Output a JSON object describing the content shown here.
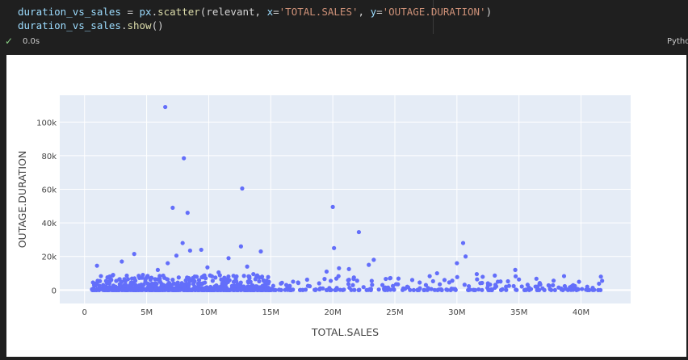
{
  "cell": {
    "line1_var": "duration_vs_sales",
    "line1_eq": " = ",
    "line1_mod": "px",
    "line1_dot": ".",
    "line1_fn": "scatter",
    "line1_open": "(relevant, ",
    "line1_xkw": "x",
    "line1_xval": "'TOTAL.SALES'",
    "line1_sep": ", ",
    "line1_ykw": "y",
    "line1_yval": "'OUTAGE.DURATION'",
    "line1_close": ")",
    "line2_var": "duration_vs_sales",
    "line2_dot": ".",
    "line2_fn": "show",
    "line2_paren": "()",
    "eq_sign": "="
  },
  "status": {
    "check_icon": "check-icon",
    "exec_time": "0.0s",
    "kernel": "Pytho"
  },
  "colors": {
    "plot_bg": "#e5ecf6",
    "marker": "#636efa",
    "grid": "#ffffff",
    "axis_text": "#444444"
  },
  "chart_data": {
    "type": "scatter",
    "xlabel": "TOTAL.SALES",
    "ylabel": "OUTAGE.DURATION",
    "xlim": [
      -2000000,
      44000000
    ],
    "ylim": [
      -8000,
      116000
    ],
    "x_ticks": [
      0,
      5000000,
      10000000,
      15000000,
      20000000,
      25000000,
      30000000,
      35000000,
      40000000
    ],
    "x_tick_labels": [
      "0",
      "5M",
      "10M",
      "15M",
      "20M",
      "25M",
      "30M",
      "35M",
      "40M"
    ],
    "y_ticks": [
      0,
      20000,
      40000,
      60000,
      80000,
      100000
    ],
    "y_tick_labels": [
      "0",
      "20k",
      "40k",
      "60k",
      "80k",
      "100k"
    ],
    "grid": true,
    "x": [
      6500000,
      8000000,
      12700000,
      7100000,
      8300000,
      20000000,
      20100000,
      22100000,
      7900000,
      12600000,
      30500000,
      30700000,
      4000000,
      14200000,
      9400000,
      8500000,
      23300000,
      22900000,
      11600000,
      3000000,
      1000000,
      2300000,
      5900000,
      6700000,
      10800000,
      13100000,
      16800000,
      18900000,
      24600000,
      27500000,
      31600000,
      33300000,
      34700000,
      41600000,
      39200000,
      36900000,
      35800000,
      26400000,
      25100000,
      19500000,
      17200000,
      15200000,
      12000000,
      3500000,
      1500000,
      600000,
      28400000,
      32500000,
      38200000,
      40500000,
      20500000,
      21700000,
      7400000,
      9900000,
      4700000,
      29000000,
      34200000,
      37500000,
      19000000,
      26000000,
      2000000,
      5300000,
      11200000,
      13600000,
      27000000,
      24000000,
      41700000,
      18000000,
      21300000,
      30000000
    ],
    "y": [
      109000,
      78500,
      60500,
      49000,
      46000,
      49500,
      25000,
      34500,
      28000,
      26000,
      28000,
      20000,
      21500,
      23000,
      24000,
      23500,
      18000,
      15000,
      19000,
      17000,
      14500,
      9000,
      12000,
      16000,
      10500,
      14000,
      5000,
      4000,
      7000,
      3000,
      9500,
      5000,
      12000,
      8000,
      2000,
      1000,
      1500,
      6000,
      3500,
      11000,
      4500,
      2500,
      8500,
      6500,
      3000,
      500,
      10000,
      4000,
      1500,
      2000,
      13000,
      7500,
      20500,
      13500,
      9000,
      6000,
      2500,
      500,
      1000,
      2000,
      4000,
      7000,
      5500,
      9500,
      4500,
      3000,
      5500,
      2500,
      12500,
      16000
    ]
  }
}
